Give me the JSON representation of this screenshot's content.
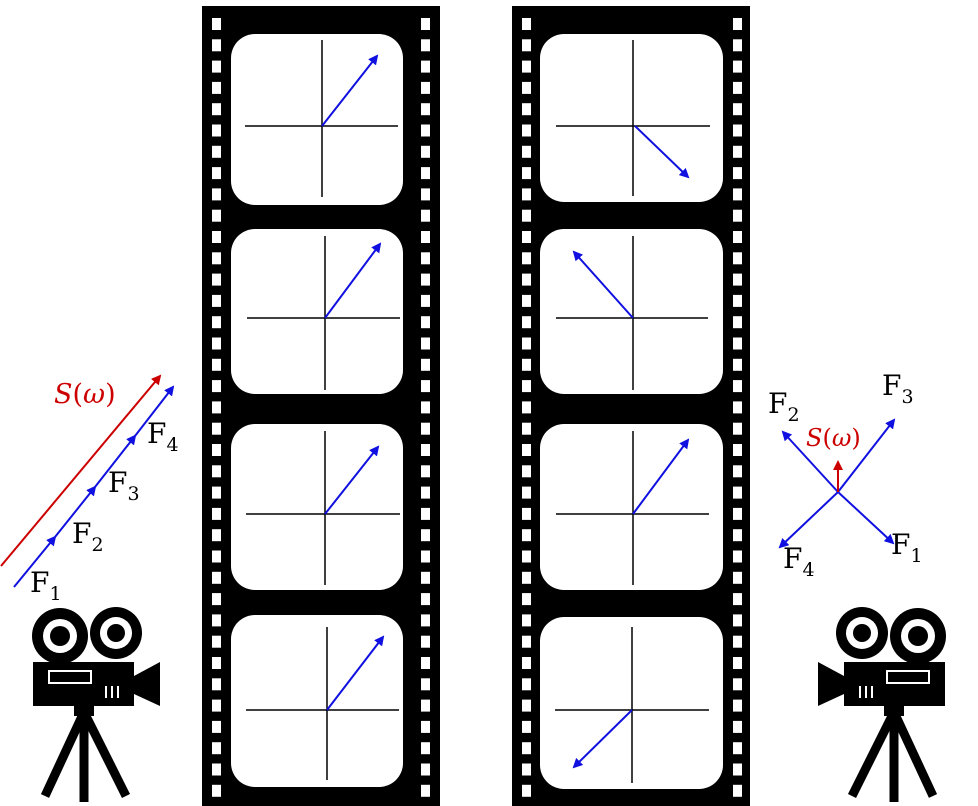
{
  "left_vector_labels": [
    {
      "letter": "F",
      "sub": "1"
    },
    {
      "letter": "F",
      "sub": "2"
    },
    {
      "letter": "F",
      "sub": "3"
    },
    {
      "letter": "F",
      "sub": "4"
    }
  ],
  "left_sum_label": {
    "func": "S",
    "open": "(",
    "arg": "ω",
    "close": ")"
  },
  "right_vector_labels": {
    "f1": {
      "letter": "F",
      "sub": "1"
    },
    "f2": {
      "letter": "F",
      "sub": "2"
    },
    "f3": {
      "letter": "F",
      "sub": "3"
    },
    "f4": {
      "letter": "F",
      "sub": "4"
    }
  },
  "right_sum_label": {
    "func": "S",
    "open": "(",
    "arg": "ω",
    "close": ")"
  },
  "colors": {
    "vector": "#1010e0",
    "sum": "#cc0000",
    "film": "#000000",
    "frame": "#ffffff"
  },
  "icons": [
    "movie-camera-icon",
    "film-strip"
  ]
}
